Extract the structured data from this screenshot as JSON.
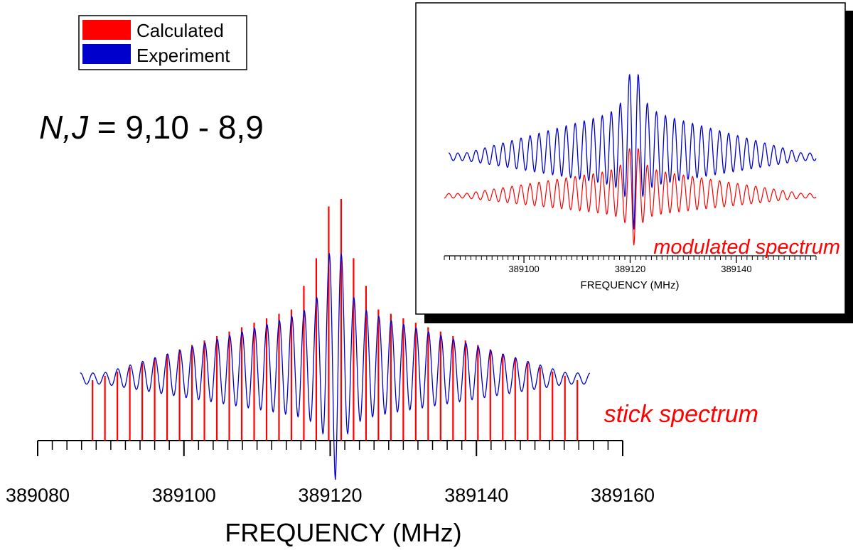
{
  "colors": {
    "calculated": "#ff0000",
    "experiment": "#0000cc",
    "axis": "#000000",
    "annotation": "#ff0000"
  },
  "title": {
    "prefix_italic": "N,J",
    "rest": " = 9,10 - 8,9"
  },
  "legend": {
    "position": "top-left",
    "items": [
      "Calculated",
      "Experiment"
    ]
  },
  "chart_data": [
    {
      "id": "main",
      "type": "line",
      "xlabel": "FREQUENCY  (MHz)",
      "xlim": [
        389080,
        389160
      ],
      "x_ticks": [
        389080,
        389100,
        389120,
        389140,
        389160
      ],
      "x_minor_step": 2,
      "annotation": "stick spectrum",
      "sticks": {
        "name": "Calculated",
        "positions": [
          389087.5,
          389089.2,
          389090.9,
          389092.6,
          389094.3,
          389096.0,
          389097.7,
          389099.4,
          389101.1,
          389102.8,
          389104.5,
          389106.2,
          389107.9,
          389109.6,
          389111.3,
          389113.0,
          389114.7,
          389116.4,
          389118.1,
          389119.8,
          389121.5,
          389123.2,
          389124.9,
          389126.6,
          389128.3,
          389130.0,
          389131.7,
          389133.4,
          389135.1,
          389136.8,
          389138.5,
          389140.2,
          389141.9,
          389143.6,
          389145.3,
          389147.0,
          389148.7,
          389150.4,
          389152.1,
          389153.8
        ],
        "relative_intensity": [
          0.082,
          0.104,
          0.125,
          0.148,
          0.17,
          0.193,
          0.215,
          0.238,
          0.26,
          0.283,
          0.305,
          0.328,
          0.35,
          0.373,
          0.395,
          0.418,
          0.44,
          0.56,
          0.7,
          0.962,
          1.0,
          0.7,
          0.56,
          0.44,
          0.418,
          0.395,
          0.373,
          0.35,
          0.328,
          0.305,
          0.283,
          0.26,
          0.238,
          0.215,
          0.193,
          0.17,
          0.148,
          0.125,
          0.104,
          0.082
        ]
      },
      "trace": {
        "name": "Experiment",
        "x_range": [
          389085.8,
          389155.5
        ],
        "center": 389120.7,
        "period": 1.7
      }
    },
    {
      "id": "inset",
      "type": "line",
      "xlabel": "FREQUENCY  (MHz)",
      "xlim": [
        389085,
        389155
      ],
      "x_ticks": [
        389100,
        389120,
        389140
      ],
      "x_minor_step": 1,
      "annotation": "modulated spectrum",
      "series": [
        {
          "name": "Experiment",
          "x_range": [
            389085.8,
            389155
          ],
          "center": 389120.7,
          "period": 1.7
        },
        {
          "name": "Calculated",
          "x_range": [
            389085,
            389155
          ],
          "center": 389120.7,
          "period": 1.7
        }
      ]
    }
  ]
}
